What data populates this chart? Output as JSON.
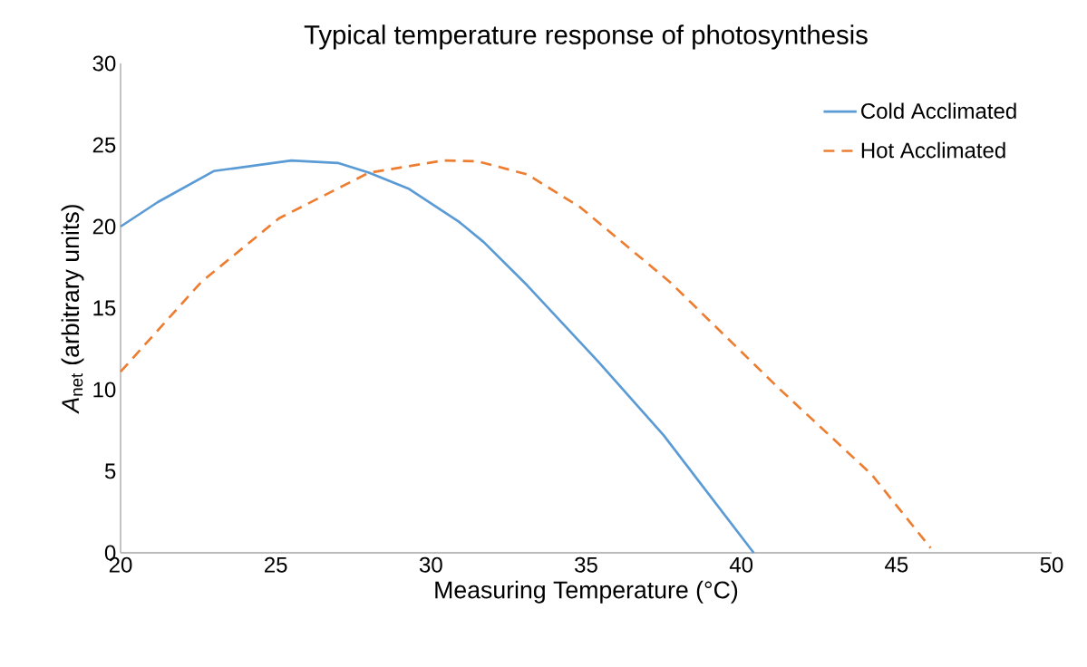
{
  "chart_data": {
    "type": "line",
    "title": "Typical temperature response of photosynthesis",
    "xlabel": "Measuring Temperature (°C)",
    "ylabel": "*A*$_{net}$ (arbitrary units)",
    "xlim": [
      20,
      50
    ],
    "ylim": [
      0,
      30
    ],
    "xticks": [
      20,
      25,
      30,
      35,
      40,
      45,
      50
    ],
    "yticks": [
      0,
      5,
      10,
      15,
      20,
      25,
      30
    ],
    "legend": "top right",
    "series": [
      {
        "name": "Cold Acclimated",
        "color": "#5b9bd5",
        "line_style": "solid",
        "x": [
          20,
          21.2,
          23.0,
          25.5,
          27.0,
          28.0,
          29.3,
          30.9,
          31.7,
          33.1,
          35.4,
          37.5,
          40.4
        ],
        "values": [
          20,
          21.5,
          23.4,
          24.05,
          23.9,
          23.3,
          22.3,
          20.3,
          19.05,
          16.4,
          11.7,
          7.2,
          0
        ]
      },
      {
        "name": "Hot Acclimated",
        "color": "#ed7d31",
        "line_style": "dashed",
        "x": [
          20,
          22.6,
          25.1,
          28.0,
          30.4,
          31.5,
          33.1,
          34.8,
          37.7,
          41.2,
          44.2,
          46.1
        ],
        "values": [
          11.1,
          16.6,
          20.5,
          23.3,
          24.05,
          24.0,
          23.2,
          21.2,
          16.6,
          10.1,
          4.8,
          0.3
        ]
      }
    ]
  }
}
